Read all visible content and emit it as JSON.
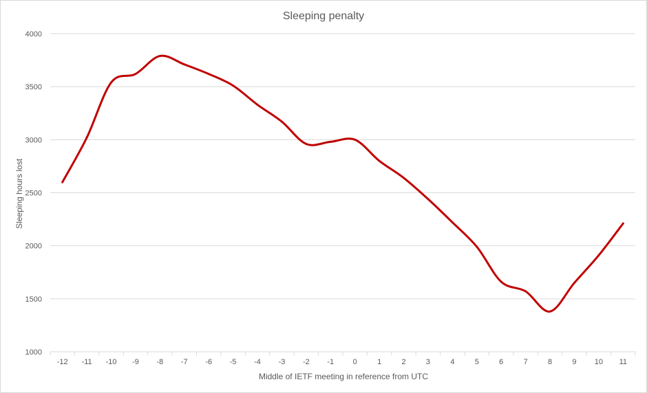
{
  "chart_data": {
    "type": "line",
    "title": "Sleeping penalty",
    "xlabel": "Middle of IETF meeting  in reference from UTC",
    "ylabel": "Sleeping hours lost",
    "x": [
      -12,
      -11,
      -10,
      -9,
      -8,
      -7,
      -6,
      -5,
      -4,
      -3,
      -2,
      -1,
      0,
      1,
      2,
      3,
      4,
      5,
      6,
      7,
      8,
      9,
      10,
      11
    ],
    "series": [
      {
        "values": [
          2600,
          3020,
          3540,
          3620,
          3790,
          3710,
          3620,
          3510,
          3330,
          3170,
          2960,
          2980,
          3000,
          2800,
          2640,
          2440,
          2220,
          1990,
          1660,
          1570,
          1380,
          1650,
          1910,
          2210
        ],
        "color": "#c00000"
      }
    ],
    "ylim": [
      1000,
      4000
    ],
    "yticks": [
      1000,
      1500,
      2000,
      2500,
      3000,
      3500,
      4000
    ],
    "xticks": [
      "-12",
      "-11",
      "-10",
      "-9",
      "-8",
      "-7",
      "-6",
      "-5",
      "-4",
      "-3",
      "-2",
      "-1",
      "0",
      "1",
      "2",
      "3",
      "4",
      "5",
      "6",
      "7",
      "8",
      "9",
      "10",
      "11"
    ],
    "grid": true,
    "legend": "none"
  }
}
